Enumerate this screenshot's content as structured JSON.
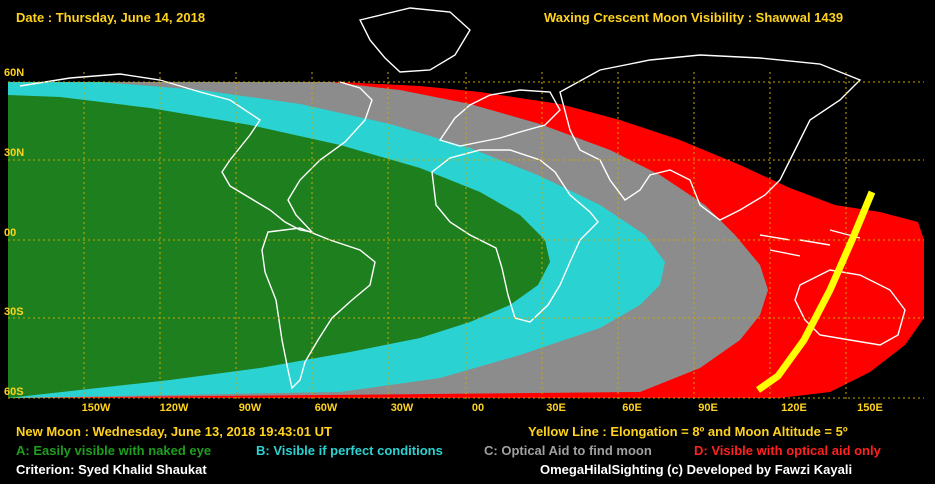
{
  "header": {
    "date": "Date : Thursday, June 14, 2018",
    "title": "Waxing Crescent Moon Visibility : Shawwal 1439"
  },
  "map": {
    "latitude_labels": [
      "60N",
      "30N",
      "00",
      "30S",
      "60S"
    ],
    "longitude_labels": [
      "150W",
      "120W",
      "90W",
      "60W",
      "30W",
      "00",
      "30E",
      "60E",
      "90E",
      "120E",
      "150E"
    ],
    "zone_colors": {
      "A": "#1e7f1e",
      "B": "#2bd2d2",
      "C": "#8c8c8c",
      "D": "#ff0000",
      "elongation_line": "#ffff00",
      "background": "#000000",
      "coastline": "#ffffff",
      "grid": "#c8a800"
    }
  },
  "footer": {
    "new_moon": "New Moon : Wednesday, June 13, 2018  19:43:01  UT",
    "yellow_line": "Yellow Line : Elongation = 8º  and Moon Altitude = 5º",
    "legend": {
      "A": "A: Easily visible with naked eye",
      "B": "B: Visible if perfect conditions",
      "C": "C: Optical Aid to find moon",
      "D": "D: Visible with optical aid only"
    },
    "criterion": "Criterion: Syed Khalid Shaukat",
    "credit": "OmegaHilalSighting  (c)  Developed by Fawzi Kayali"
  }
}
